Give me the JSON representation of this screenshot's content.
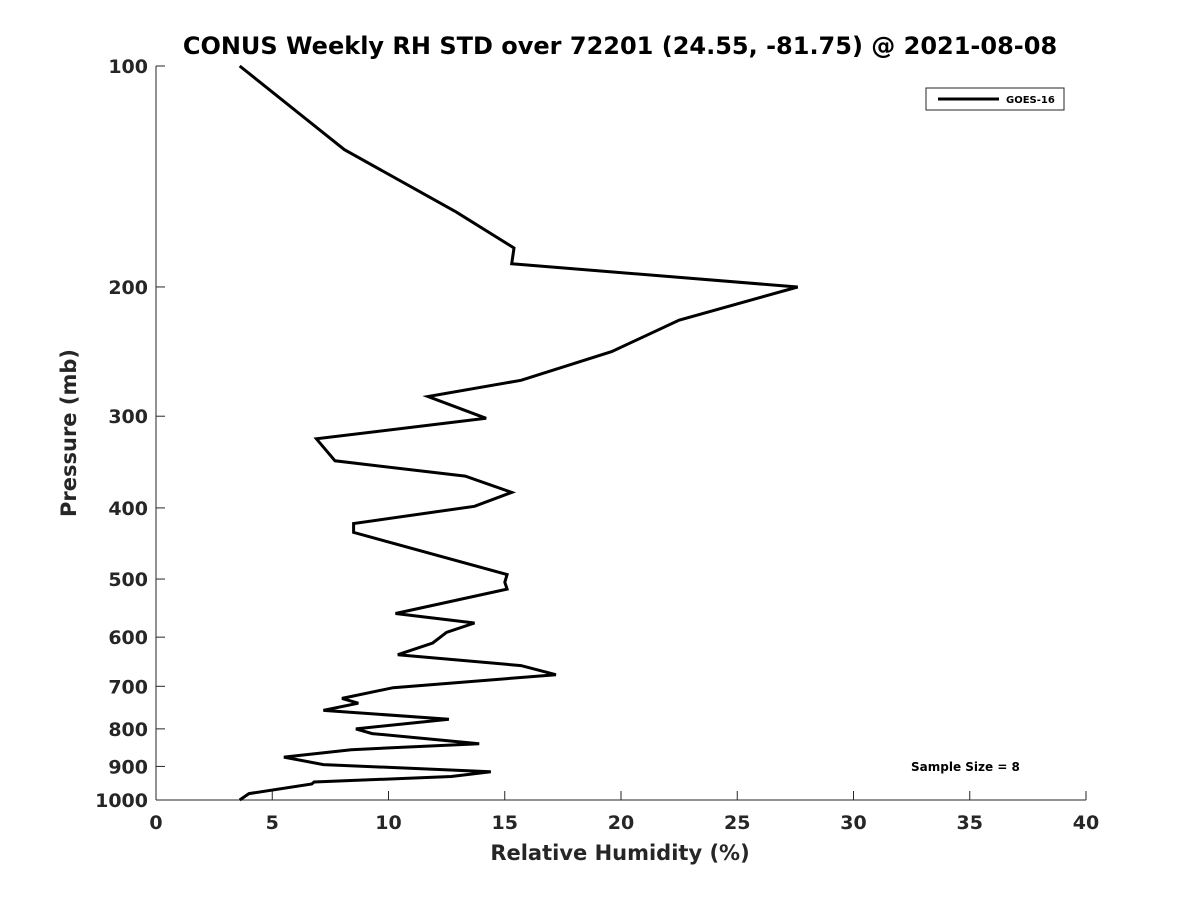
{
  "chart_data": {
    "type": "line",
    "title": "CONUS Weekly RH STD over 72201 (24.55, -81.75) @ 2021-08-08",
    "xlabel": "Relative Humidity (%)",
    "ylabel": "Pressure (mb)",
    "xlim": [
      0,
      40
    ],
    "ylim": [
      100,
      1000
    ],
    "yscale": "log",
    "y_reversed": true,
    "x_ticks": [
      0,
      5,
      10,
      15,
      20,
      25,
      30,
      35,
      40
    ],
    "y_ticks": [
      100,
      200,
      300,
      400,
      500,
      600,
      700,
      800,
      900,
      1000
    ],
    "grid": false,
    "legend_position": "top-right",
    "series": [
      {
        "name": "GOES-16",
        "color": "#000000",
        "x": [
          3.6,
          8.1,
          12.9,
          15.4,
          15.3,
          27.6,
          22.5,
          19.6,
          15.7,
          11.7,
          14.2,
          6.9,
          7.7,
          13.3,
          15.3,
          13.7,
          8.5,
          8.5,
          15.1,
          15.0,
          15.1,
          10.3,
          13.7,
          12.5,
          11.9,
          10.4,
          15.7,
          17.2,
          10.2,
          8.0,
          8.7,
          7.2,
          12.6,
          8.6,
          9.3,
          13.9,
          8.4,
          5.5,
          7.2,
          14.4,
          12.7,
          6.8,
          6.7,
          4.0,
          3.6
        ],
        "y": [
          100,
          130,
          158,
          177,
          186,
          200,
          222,
          245,
          268,
          282,
          302,
          322,
          345,
          362,
          381,
          398,
          420,
          432,
          493,
          505,
          516,
          557,
          574,
          591,
          611,
          634,
          656,
          675,
          703,
          727,
          738,
          755,
          776,
          800,
          812,
          838,
          854,
          874,
          895,
          915,
          929,
          945,
          951,
          980,
          1000
        ]
      }
    ],
    "annotations": [
      "Sample Size = 8"
    ]
  }
}
